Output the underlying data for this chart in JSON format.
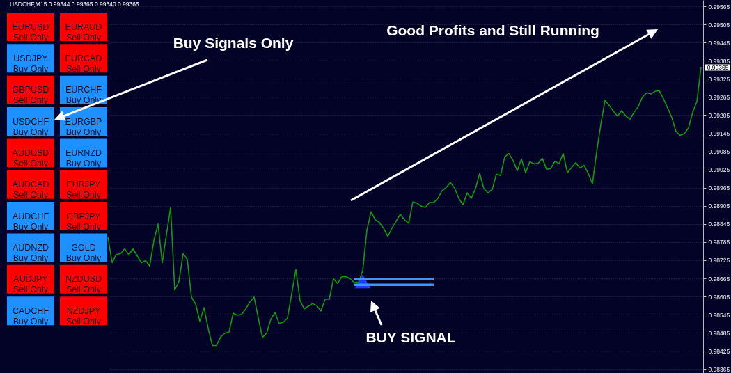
{
  "chart_data": [
    {
      "type": "line",
      "title": "USDCHF,M15  0.99344 0.99365 0.99340 0.99365",
      "categories": [
        null,
        null,
        null,
        null,
        null,
        null,
        null,
        null,
        null,
        null,
        null,
        null,
        null,
        null,
        null,
        null,
        null,
        null,
        null,
        null,
        null,
        null,
        null,
        null,
        null,
        null,
        null,
        null,
        null,
        null,
        null,
        null,
        null,
        null,
        null,
        null,
        null,
        null,
        null,
        null,
        null,
        null,
        null,
        null,
        null,
        null,
        null,
        null,
        null,
        null,
        null,
        null,
        null,
        null,
        null,
        null,
        null,
        null,
        null,
        null,
        null,
        null,
        null,
        null,
        null,
        null,
        null,
        null,
        null,
        null,
        null,
        null,
        null,
        null,
        null,
        null,
        null,
        null,
        null,
        null,
        null,
        null,
        null,
        null,
        null,
        null,
        null,
        null,
        null,
        null,
        null,
        null,
        null,
        null,
        null,
        null,
        null,
        null,
        null,
        null,
        null,
        null,
        null,
        null,
        null,
        null,
        null,
        null,
        null,
        null,
        null,
        null,
        null,
        null,
        null,
        null,
        null,
        null,
        null,
        null,
        null,
        null,
        null,
        null,
        null,
        null,
        null,
        null,
        null,
        null,
        null,
        null,
        null,
        null,
        null,
        null,
        null,
        null,
        null,
        null,
        null,
        null,
        null
      ],
      "series": [
        {
          "type": "line",
          "color": "#109b10",
          "values": [
            0.98802,
            0.98717,
            0.98744,
            0.98747,
            0.98763,
            0.98744,
            0.98763,
            0.9874,
            0.98717,
            0.98724,
            0.98706,
            0.9879,
            0.98845,
            0.98717,
            0.98809,
            0.989,
            0.98626,
            0.98655,
            0.98747,
            0.98728,
            0.98603,
            0.9858,
            0.98523,
            0.98568,
            0.985,
            0.98443,
            0.98443,
            0.98472,
            0.98484,
            0.98488,
            0.9855,
            0.98543,
            0.98546,
            0.98564,
            0.98587,
            0.98603,
            0.98534,
            0.9847,
            0.98484,
            0.9853,
            0.98552,
            0.98516,
            0.9852,
            0.98534,
            0.98614,
            0.98694,
            0.98591,
            0.98564,
            0.98573,
            0.98582,
            0.98575,
            0.98557,
            0.98596,
            0.98596,
            0.98664,
            0.98648,
            0.98671,
            0.98671,
            0.98664,
            0.98651,
            0.98653,
            0.9869,
            0.98824,
            0.98886,
            0.98859,
            0.9885,
            0.98831,
            0.98804,
            0.98831,
            0.98854,
            0.98877,
            0.98859,
            0.98847,
            0.98918,
            0.98914,
            0.98904,
            0.989,
            0.98916,
            0.98916,
            0.9893,
            0.98955,
            0.98966,
            0.98982,
            0.98964,
            0.9893,
            0.98909,
            0.98948,
            0.9893,
            0.98962,
            0.99012,
            0.98962,
            0.98948,
            0.98959,
            0.9901,
            0.99005,
            0.99067,
            0.99078,
            0.99055,
            0.99021,
            0.9906,
            0.99014,
            0.99051,
            0.99044,
            0.99046,
            0.99062,
            0.99026,
            0.99028,
            0.99053,
            0.99044,
            0.99078,
            0.99014,
            0.99032,
            0.99048,
            0.9903,
            0.99039,
            0.99012,
            0.98978,
            0.99083,
            0.99174,
            0.99254,
            0.99238,
            0.99218,
            0.99202,
            0.9922,
            0.99202,
            0.99192,
            0.99215,
            0.99234,
            0.99266,
            0.99279,
            0.99275,
            0.99284,
            0.99286,
            0.99259,
            0.99229,
            0.99197,
            0.99151,
            0.99138,
            0.99144,
            0.99163,
            0.99215,
            0.9925,
            0.99365
          ]
        },
        {
          "type": "scatter",
          "color": "#1f3cff",
          "marker": "triangle",
          "values": [
            null,
            null,
            null,
            null,
            null,
            null,
            null,
            null,
            null,
            null,
            null,
            null,
            null,
            null,
            null,
            null,
            null,
            null,
            null,
            null,
            null,
            null,
            null,
            null,
            null,
            null,
            null,
            null,
            null,
            null,
            null,
            null,
            null,
            null,
            null,
            null,
            null,
            null,
            null,
            null,
            null,
            null,
            null,
            null,
            null,
            null,
            null,
            null,
            null,
            null,
            null,
            null,
            null,
            null,
            null,
            null,
            null,
            null,
            null,
            null,
            null,
            0.98655,
            null,
            null,
            null,
            null,
            null,
            null,
            null,
            null,
            null,
            null,
            null,
            null,
            null,
            null,
            null,
            null,
            null,
            null,
            null,
            null,
            null,
            null,
            null,
            null,
            null,
            null,
            null,
            null,
            null,
            null,
            null,
            null,
            null,
            null,
            null,
            null,
            null,
            null,
            null,
            null,
            null,
            null,
            null,
            null,
            null,
            null,
            null,
            null,
            null,
            null,
            null,
            null,
            null,
            null,
            null,
            null,
            null,
            null,
            null,
            null,
            null,
            null,
            null,
            null,
            null,
            null,
            null,
            null,
            null,
            null,
            null,
            null,
            null,
            null,
            null,
            null,
            null,
            null,
            null,
            null,
            null
          ]
        },
        {
          "type": "line",
          "color": "#3c96ff",
          "values": [
            null,
            null,
            null,
            null,
            null,
            null,
            null,
            null,
            null,
            null,
            null,
            null,
            null,
            null,
            null,
            null,
            null,
            null,
            null,
            null,
            null,
            null,
            null,
            null,
            null,
            null,
            null,
            null,
            null,
            null,
            null,
            null,
            null,
            null,
            null,
            null,
            null,
            null,
            null,
            null,
            null,
            null,
            null,
            null,
            null,
            null,
            null,
            null,
            null,
            null,
            null,
            null,
            null,
            null,
            null,
            null,
            null,
            null,
            null,
            0.98662,
            0.98662,
            0.98662,
            0.98662,
            0.98662,
            0.98662,
            0.98662,
            0.98662,
            0.98662,
            0.98662,
            0.98662,
            0.98662,
            0.98662,
            0.98662,
            0.98662,
            0.98662,
            0.98662,
            0.98662,
            0.98662,
            0.98662,
            null,
            null,
            null,
            null,
            null,
            null,
            null,
            null,
            null,
            null,
            null,
            null,
            null,
            null,
            null,
            null,
            null,
            null,
            null,
            null,
            null,
            null,
            null,
            null,
            null,
            null,
            null,
            null,
            null,
            null,
            null,
            null,
            null,
            null,
            null,
            null,
            null,
            null,
            null,
            null,
            null,
            null,
            null,
            null,
            null,
            null,
            null,
            null,
            null,
            null,
            null,
            null,
            null,
            null,
            null,
            null,
            null,
            null,
            null,
            null,
            null,
            null,
            null,
            null
          ]
        },
        {
          "type": "line",
          "color": "#3c96ff",
          "values": [
            null,
            null,
            null,
            null,
            null,
            null,
            null,
            null,
            null,
            null,
            null,
            null,
            null,
            null,
            null,
            null,
            null,
            null,
            null,
            null,
            null,
            null,
            null,
            null,
            null,
            null,
            null,
            null,
            null,
            null,
            null,
            null,
            null,
            null,
            null,
            null,
            null,
            null,
            null,
            null,
            null,
            null,
            null,
            null,
            null,
            null,
            null,
            null,
            null,
            null,
            null,
            null,
            null,
            null,
            null,
            null,
            null,
            null,
            null,
            0.98644,
            0.98644,
            0.98644,
            0.98644,
            0.98644,
            0.98644,
            0.98644,
            0.98644,
            0.98644,
            0.98644,
            0.98644,
            0.98644,
            0.98644,
            0.98644,
            0.98644,
            0.98644,
            0.98644,
            0.98644,
            0.98644,
            0.98644,
            null,
            null,
            null,
            null,
            null,
            null,
            null,
            null,
            null,
            null,
            null,
            null,
            null,
            null,
            null,
            null,
            null,
            null,
            null,
            null,
            null,
            null,
            null,
            null,
            null,
            null,
            null,
            null,
            null,
            null,
            null,
            null,
            null,
            null,
            null,
            null,
            null,
            null,
            null,
            null,
            null,
            null,
            null,
            null,
            null,
            null,
            null,
            null,
            null,
            null,
            null,
            null,
            null,
            null,
            null,
            null,
            null,
            null,
            null,
            null,
            null,
            null,
            null,
            null
          ]
        }
      ],
      "ylim": [
        0.98352,
        0.99586
      ],
      "yticks": [
        0.98365,
        0.98425,
        0.98485,
        0.98545,
        0.98605,
        0.98665,
        0.98725,
        0.98785,
        0.98845,
        0.98905,
        0.98965,
        0.99025,
        0.99085,
        0.99145,
        0.99205,
        0.99265,
        0.99325,
        0.99385,
        0.99445,
        0.99505,
        0.99565
      ],
      "grid": "y",
      "tick_labels": "y",
      "annotations": [
        "Buy Signals Only",
        "Good Profits and Still Running",
        "BUY SIGNAL",
        "0.99365"
      ]
    },
    {
      "type": "other",
      "categories": [
        "EURUSD\nSell Only",
        "EURAUD\nSell Only",
        "USDJPY\nBuy Only",
        "EURCAD\nSell Only",
        "GBPUSD\nSell Only",
        "EURCHF\nBuy Only",
        "USDCHF\nBuy Only",
        "EURGBP\nBuy Only",
        "AUDUSD\nSell Only",
        "EURNZD\nBuy Only",
        "AUDCAD\nSell Only",
        "EURJPY\nSell Only",
        "AUDCHF\nBuy Only",
        "GBPJPY\nSell Only",
        "AUDNZD\nBuy Only",
        "GOLD\nBuy Only",
        "AUDJPY\nSell Only",
        "NZDUSD\nSell Only",
        "CADCHF\nBuy Only",
        "NZDJPY\nSell Only"
      ],
      "colors": [
        "#ff0000",
        "#ff0000",
        "#1e90ff",
        "#ff0000",
        "#ff0000",
        "#1e90ff",
        "#1e90ff",
        "#1e90ff",
        "#ff0000",
        "#1e90ff",
        "#ff0000",
        "#ff0000",
        "#1e90ff",
        "#ff0000",
        "#1e90ff",
        "#1e90ff",
        "#ff0000",
        "#ff0000",
        "#1e90ff",
        "#ff0000"
      ]
    }
  ]
}
